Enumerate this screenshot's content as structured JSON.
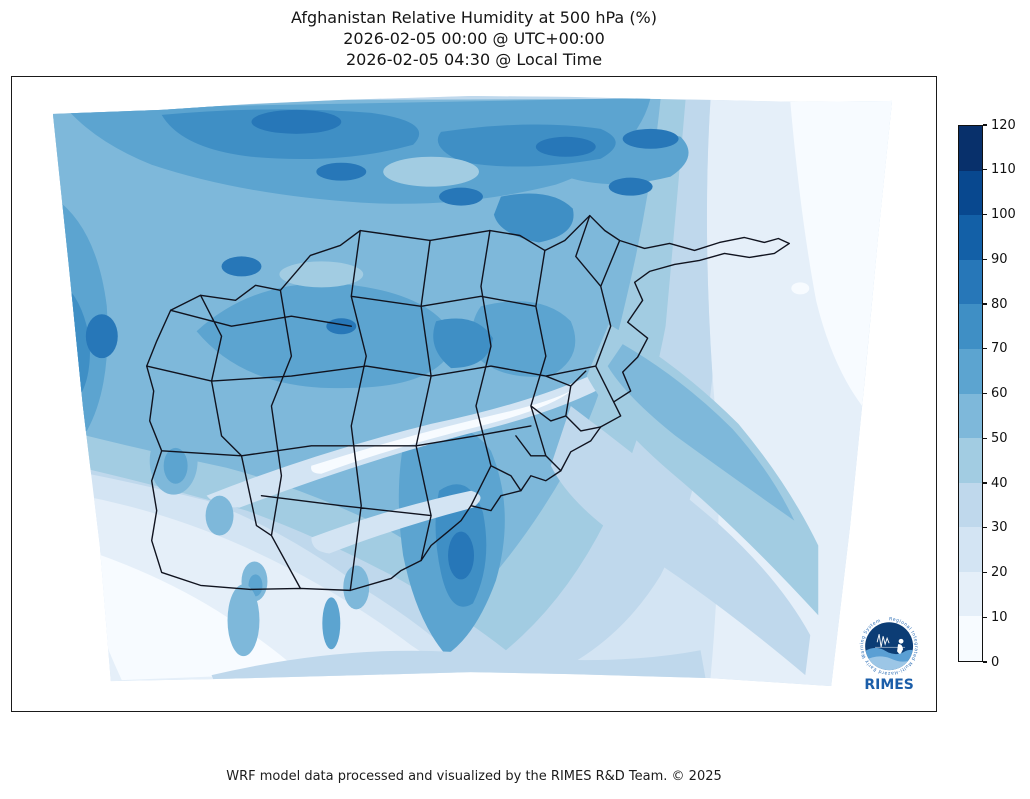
{
  "figure": {
    "title_lines": [
      "Afghanistan Relative Humidity at 500 hPa (%)",
      "2026-02-05 00:00 @ UTC+00:00",
      "2026-02-05 04:30 @ Local Time"
    ],
    "footer": "WRF model data processed and visualized by the RIMES R&D Team. © 2025"
  },
  "colorbar": {
    "min": 0,
    "max": 120,
    "unit": "%",
    "ticks": [
      "0",
      "10",
      "20",
      "30",
      "40",
      "50",
      "60",
      "70",
      "80",
      "90",
      "100",
      "110",
      "120"
    ],
    "colors": [
      "#f7fbff",
      "#e5eff9",
      "#d3e4f3",
      "#bfd8ec",
      "#a2cce2",
      "#7eb8da",
      "#5ca4d0",
      "#3f8fc5",
      "#2777b8",
      "#1360a7",
      "#08488f",
      "#08306b"
    ]
  },
  "map": {
    "boundary_color": "#10131f",
    "frame_color": "#1a1a1a",
    "boundaries_shown": "Afghanistan national and province boundaries"
  },
  "logo": {
    "wordmark": "RIMES",
    "ring_text": "Regional Integrated Multi-Hazard Early Warning System",
    "wordmark_color": "#1b5ea9",
    "disc_color": "#0c3d75"
  },
  "chart_data": {
    "type": "heatmap",
    "title": "Afghanistan Relative Humidity at 500 hPa (%)",
    "valid_time_utc": "2026-02-05 00:00 @ UTC+00:00",
    "valid_time_local": "2026-02-05 04:30 @ Local Time",
    "variable": "Relative Humidity",
    "pressure_level_hPa": 500,
    "units": "%",
    "colormap": "Blues (12 discrete bins)",
    "contour_levels": [
      0,
      10,
      20,
      30,
      40,
      50,
      60,
      70,
      80,
      90,
      100,
      110,
      120
    ],
    "colorbar_range": [
      0,
      120
    ],
    "legend_position": "right",
    "region": "Afghanistan WRF model domain with province boundaries",
    "field_summary": {
      "north_and_northwest": "60-90% humid band with local 80-100% patches along the top edge",
      "central_highlands": "30-80% with dry valley streaks down to 0-20%",
      "south_center_band": "60-90% plume extending to the southern border",
      "southwest_lowlands": "0-30%, driest with isolated 50-70% spots",
      "east_and_upper_right": "10-40%, lightest (near 0-10%) in the upper-right corner"
    }
  }
}
